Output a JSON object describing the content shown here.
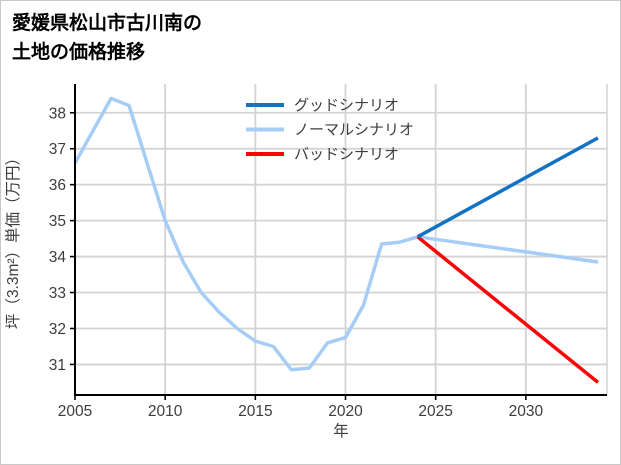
{
  "window": {
    "title_line1": "愛媛県松山市古川南の",
    "title_line2": "土地の価格推移"
  },
  "chart_data": {
    "type": "line",
    "title": "愛媛県松山市古川南の土地の価格推移",
    "xlabel": "年",
    "ylabel": "坪（3.3m²）単価（万円）",
    "xlim": [
      2005,
      2034.5
    ],
    "ylim": [
      30.15,
      38.8
    ],
    "x_ticks": [
      2005,
      2010,
      2015,
      2020,
      2025,
      2030
    ],
    "y_ticks": [
      31,
      32,
      33,
      34,
      35,
      36,
      37,
      38
    ],
    "grid": true,
    "legend_position": "upper center",
    "series": [
      {
        "key": "good",
        "name": "グッドシナリオ",
        "color": "#1272c3",
        "z": 3,
        "x": [
          2024,
          2034
        ],
        "values": [
          34.55,
          37.3
        ]
      },
      {
        "key": "normal",
        "name": "ノーマルシナリオ",
        "color": "#a6cdf5",
        "z": 1,
        "x": [
          2005,
          2006,
          2007,
          2008,
          2009,
          2010,
          2011,
          2012,
          2013,
          2014,
          2015,
          2016,
          2017,
          2018,
          2019,
          2020,
          2021,
          2022,
          2023,
          2024,
          2025,
          2026,
          2027,
          2028,
          2029,
          2030,
          2031,
          2032,
          2033,
          2034
        ],
        "values": [
          36.6,
          37.5,
          38.4,
          38.2,
          36.6,
          35.0,
          33.85,
          33.0,
          32.45,
          32.0,
          31.65,
          31.5,
          30.85,
          30.9,
          31.6,
          31.75,
          32.65,
          34.35,
          34.4,
          34.55,
          34.48,
          34.41,
          34.34,
          34.27,
          34.2,
          34.13,
          34.06,
          33.99,
          33.92,
          33.85
        ]
      },
      {
        "key": "bad",
        "name": "バッドシナリオ",
        "color": "#f90505",
        "z": 2,
        "x": [
          2024,
          2034
        ],
        "values": [
          34.55,
          30.5
        ]
      }
    ],
    "colors": {
      "grid": "#d3d3d3",
      "spine": "#000000",
      "tick_text": "#3d3d3d"
    }
  }
}
